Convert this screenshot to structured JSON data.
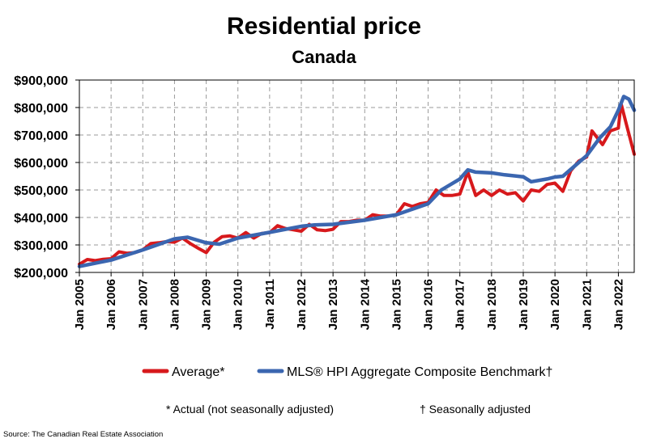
{
  "chart_data": {
    "type": "line",
    "title": "Residential price",
    "subtitle": "Canada",
    "xlabel": "",
    "ylabel": "",
    "ylim": [
      200000,
      900000
    ],
    "xlim": [
      "2005-01",
      "2022-07"
    ],
    "y_ticks": [
      {
        "value": 900000,
        "label": "$900,000"
      },
      {
        "value": 800000,
        "label": "$800,000"
      },
      {
        "value": 700000,
        "label": "$700,000"
      },
      {
        "value": 600000,
        "label": "$600,000"
      },
      {
        "value": 500000,
        "label": "$500,000"
      },
      {
        "value": 400000,
        "label": "$400,000"
      },
      {
        "value": 300000,
        "label": "$300,000"
      },
      {
        "value": 200000,
        "label": "$200,000"
      }
    ],
    "x_ticks": [
      {
        "value": "2005-01",
        "label": "Jan 2005"
      },
      {
        "value": "2006-01",
        "label": "Jan 2006"
      },
      {
        "value": "2007-01",
        "label": "Jan 2007"
      },
      {
        "value": "2008-01",
        "label": "Jan 2008"
      },
      {
        "value": "2009-01",
        "label": "Jan 2009"
      },
      {
        "value": "2010-01",
        "label": "Jan 2010"
      },
      {
        "value": "2011-01",
        "label": "Jan 2011"
      },
      {
        "value": "2012-01",
        "label": "Jan 2012"
      },
      {
        "value": "2013-01",
        "label": "Jan 2013"
      },
      {
        "value": "2014-01",
        "label": "Jan 2014"
      },
      {
        "value": "2015-01",
        "label": "Jan 2015"
      },
      {
        "value": "2016-01",
        "label": "Jan 2016"
      },
      {
        "value": "2017-01",
        "label": "Jan 2017"
      },
      {
        "value": "2018-01",
        "label": "Jan 2018"
      },
      {
        "value": "2019-01",
        "label": "Jan 2019"
      },
      {
        "value": "2020-01",
        "label": "Jan 2020"
      },
      {
        "value": "2021-01",
        "label": "Jan 2021"
      },
      {
        "value": "2022-01",
        "label": "Jan 2022"
      }
    ],
    "grid": true,
    "legend_position": "bottom",
    "series": [
      {
        "name": "Average*",
        "color": "#d7191c",
        "points": [
          [
            "2005-01",
            230000
          ],
          [
            "2005-04",
            247000
          ],
          [
            "2005-07",
            243000
          ],
          [
            "2005-10",
            248000
          ],
          [
            "2006-01",
            250000
          ],
          [
            "2006-04",
            275000
          ],
          [
            "2006-07",
            270000
          ],
          [
            "2006-10",
            272000
          ],
          [
            "2007-01",
            282000
          ],
          [
            "2007-04",
            305000
          ],
          [
            "2007-07",
            308000
          ],
          [
            "2007-10",
            312000
          ],
          [
            "2008-01",
            310000
          ],
          [
            "2008-04",
            325000
          ],
          [
            "2008-07",
            305000
          ],
          [
            "2008-10",
            288000
          ],
          [
            "2009-01",
            272000
          ],
          [
            "2009-04",
            310000
          ],
          [
            "2009-07",
            330000
          ],
          [
            "2009-10",
            333000
          ],
          [
            "2010-01",
            325000
          ],
          [
            "2010-04",
            345000
          ],
          [
            "2010-07",
            325000
          ],
          [
            "2010-10",
            342000
          ],
          [
            "2011-01",
            345000
          ],
          [
            "2011-04",
            370000
          ],
          [
            "2011-07",
            360000
          ],
          [
            "2011-10",
            355000
          ],
          [
            "2012-01",
            350000
          ],
          [
            "2012-04",
            375000
          ],
          [
            "2012-07",
            355000
          ],
          [
            "2012-10",
            352000
          ],
          [
            "2013-01",
            357000
          ],
          [
            "2013-04",
            385000
          ],
          [
            "2013-07",
            385000
          ],
          [
            "2013-10",
            390000
          ],
          [
            "2014-01",
            390000
          ],
          [
            "2014-04",
            410000
          ],
          [
            "2014-07",
            405000
          ],
          [
            "2014-10",
            405000
          ],
          [
            "2015-01",
            410000
          ],
          [
            "2015-04",
            450000
          ],
          [
            "2015-07",
            440000
          ],
          [
            "2015-10",
            450000
          ],
          [
            "2016-01",
            455000
          ],
          [
            "2016-04",
            500000
          ],
          [
            "2016-07",
            480000
          ],
          [
            "2016-10",
            480000
          ],
          [
            "2017-01",
            485000
          ],
          [
            "2017-04",
            565000
          ],
          [
            "2017-07",
            480000
          ],
          [
            "2017-10",
            500000
          ],
          [
            "2018-01",
            480000
          ],
          [
            "2018-04",
            500000
          ],
          [
            "2018-07",
            485000
          ],
          [
            "2018-10",
            490000
          ],
          [
            "2019-01",
            460000
          ],
          [
            "2019-04",
            500000
          ],
          [
            "2019-07",
            495000
          ],
          [
            "2019-10",
            520000
          ],
          [
            "2020-01",
            525000
          ],
          [
            "2020-04",
            495000
          ],
          [
            "2020-07",
            570000
          ],
          [
            "2020-10",
            605000
          ],
          [
            "2021-01",
            620000
          ],
          [
            "2021-03",
            715000
          ],
          [
            "2021-07",
            665000
          ],
          [
            "2021-10",
            715000
          ],
          [
            "2022-01",
            725000
          ],
          [
            "2022-02",
            815000
          ],
          [
            "2022-04",
            740000
          ],
          [
            "2022-07",
            630000
          ]
        ]
      },
      {
        "name": "MLS® HPI Aggregate Composite Benchmark†",
        "color": "#3b66b0",
        "points": [
          [
            "2005-01",
            222000
          ],
          [
            "2006-01",
            245000
          ],
          [
            "2007-01",
            282000
          ],
          [
            "2008-01",
            322000
          ],
          [
            "2008-06",
            328000
          ],
          [
            "2009-01",
            308000
          ],
          [
            "2009-06",
            303000
          ],
          [
            "2010-01",
            325000
          ],
          [
            "2011-01",
            346000
          ],
          [
            "2012-01",
            368000
          ],
          [
            "2012-06",
            373000
          ],
          [
            "2013-01",
            375000
          ],
          [
            "2014-01",
            390000
          ],
          [
            "2015-01",
            410000
          ],
          [
            "2016-01",
            450000
          ],
          [
            "2016-06",
            500000
          ],
          [
            "2017-01",
            540000
          ],
          [
            "2017-04",
            573000
          ],
          [
            "2017-07",
            565000
          ],
          [
            "2018-01",
            562000
          ],
          [
            "2018-06",
            555000
          ],
          [
            "2019-01",
            548000
          ],
          [
            "2019-04",
            530000
          ],
          [
            "2019-10",
            540000
          ],
          [
            "2020-01",
            547000
          ],
          [
            "2020-04",
            550000
          ],
          [
            "2020-10",
            600000
          ],
          [
            "2021-01",
            625000
          ],
          [
            "2021-06",
            690000
          ],
          [
            "2021-10",
            730000
          ],
          [
            "2022-01",
            790000
          ],
          [
            "2022-03",
            840000
          ],
          [
            "2022-05",
            830000
          ],
          [
            "2022-07",
            790000
          ]
        ]
      }
    ],
    "footnotes": [
      "* Actual (not seasonally adjusted)",
      "† Seasonally adjusted"
    ],
    "source": "Source: The Canadian Real Estate Association"
  }
}
